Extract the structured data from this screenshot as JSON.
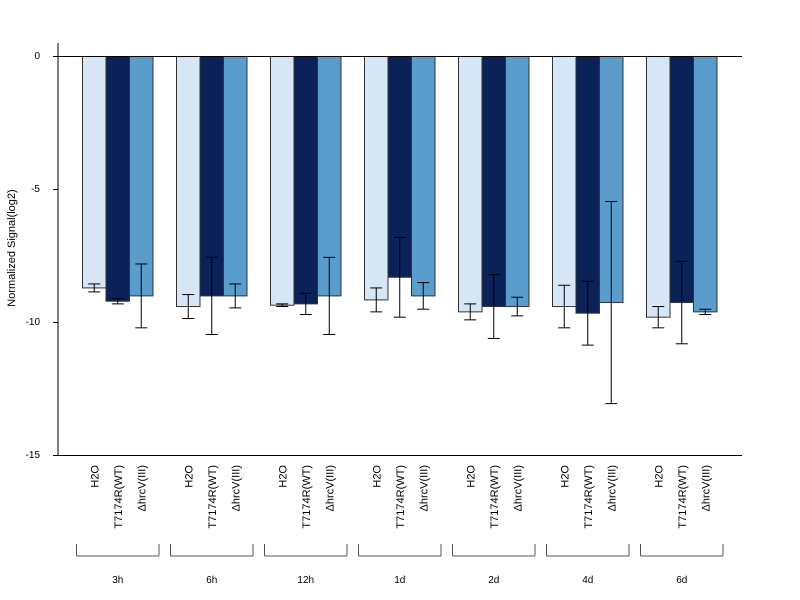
{
  "chart_data": {
    "type": "bar",
    "title": "",
    "xlabel": "",
    "ylabel": "Normalized Signal(log2)",
    "ylim": [
      -15,
      0.5
    ],
    "yticks": [
      0,
      -5,
      -10,
      -15
    ],
    "grid": false,
    "legend": "none",
    "series_colors": [
      "#d6e6f5",
      "#0a2258",
      "#5a9ccc"
    ],
    "groups": [
      {
        "label": "3h",
        "bars": [
          {
            "label": "H2O",
            "value": -8.7,
            "err": 0.15
          },
          {
            "label": "T7174R(WT)",
            "value": -9.2,
            "err": 0.1
          },
          {
            "label": "ΔhrcV(III)",
            "value": -9.0,
            "err": 1.2
          }
        ]
      },
      {
        "label": "6h",
        "bars": [
          {
            "label": "H2O",
            "value": -9.4,
            "err": 0.45
          },
          {
            "label": "T7174R(WT)",
            "value": -9.0,
            "err": 1.45
          },
          {
            "label": "ΔhrcV(III)",
            "value": -9.0,
            "err": 0.45
          }
        ]
      },
      {
        "label": "12h",
        "bars": [
          {
            "label": "H2O",
            "value": -9.35,
            "err": 0.05
          },
          {
            "label": "T7174R(WT)",
            "value": -9.3,
            "err": 0.4
          },
          {
            "label": "ΔhrcV(III)",
            "value": -9.0,
            "err": 1.45
          }
        ]
      },
      {
        "label": "1d",
        "bars": [
          {
            "label": "H2O",
            "value": -9.15,
            "err": 0.45
          },
          {
            "label": "T7174R(WT)",
            "value": -8.3,
            "err": 1.5
          },
          {
            "label": "ΔhrcV(III)",
            "value": -9.0,
            "err": 0.5
          }
        ]
      },
      {
        "label": "2d",
        "bars": [
          {
            "label": "H2O",
            "value": -9.6,
            "err": 0.3
          },
          {
            "label": "T7174R(WT)",
            "value": -9.4,
            "err": 1.2
          },
          {
            "label": "ΔhrcV(III)",
            "value": -9.4,
            "err": 0.35
          }
        ]
      },
      {
        "label": "4d",
        "bars": [
          {
            "label": "H2O",
            "value": -9.4,
            "err": 0.8
          },
          {
            "label": "T7174R(WT)",
            "value": -9.65,
            "err": 1.2
          },
          {
            "label": "ΔhrcV(III)",
            "value": -9.25,
            "err": 3.8
          }
        ]
      },
      {
        "label": "6d",
        "bars": [
          {
            "label": "H2O",
            "value": -9.8,
            "err": 0.4
          },
          {
            "label": "T7174R(WT)",
            "value": -9.25,
            "err": 1.55
          },
          {
            "label": "ΔhrcV(III)",
            "value": -9.6,
            "err": 0.1
          }
        ]
      }
    ]
  }
}
